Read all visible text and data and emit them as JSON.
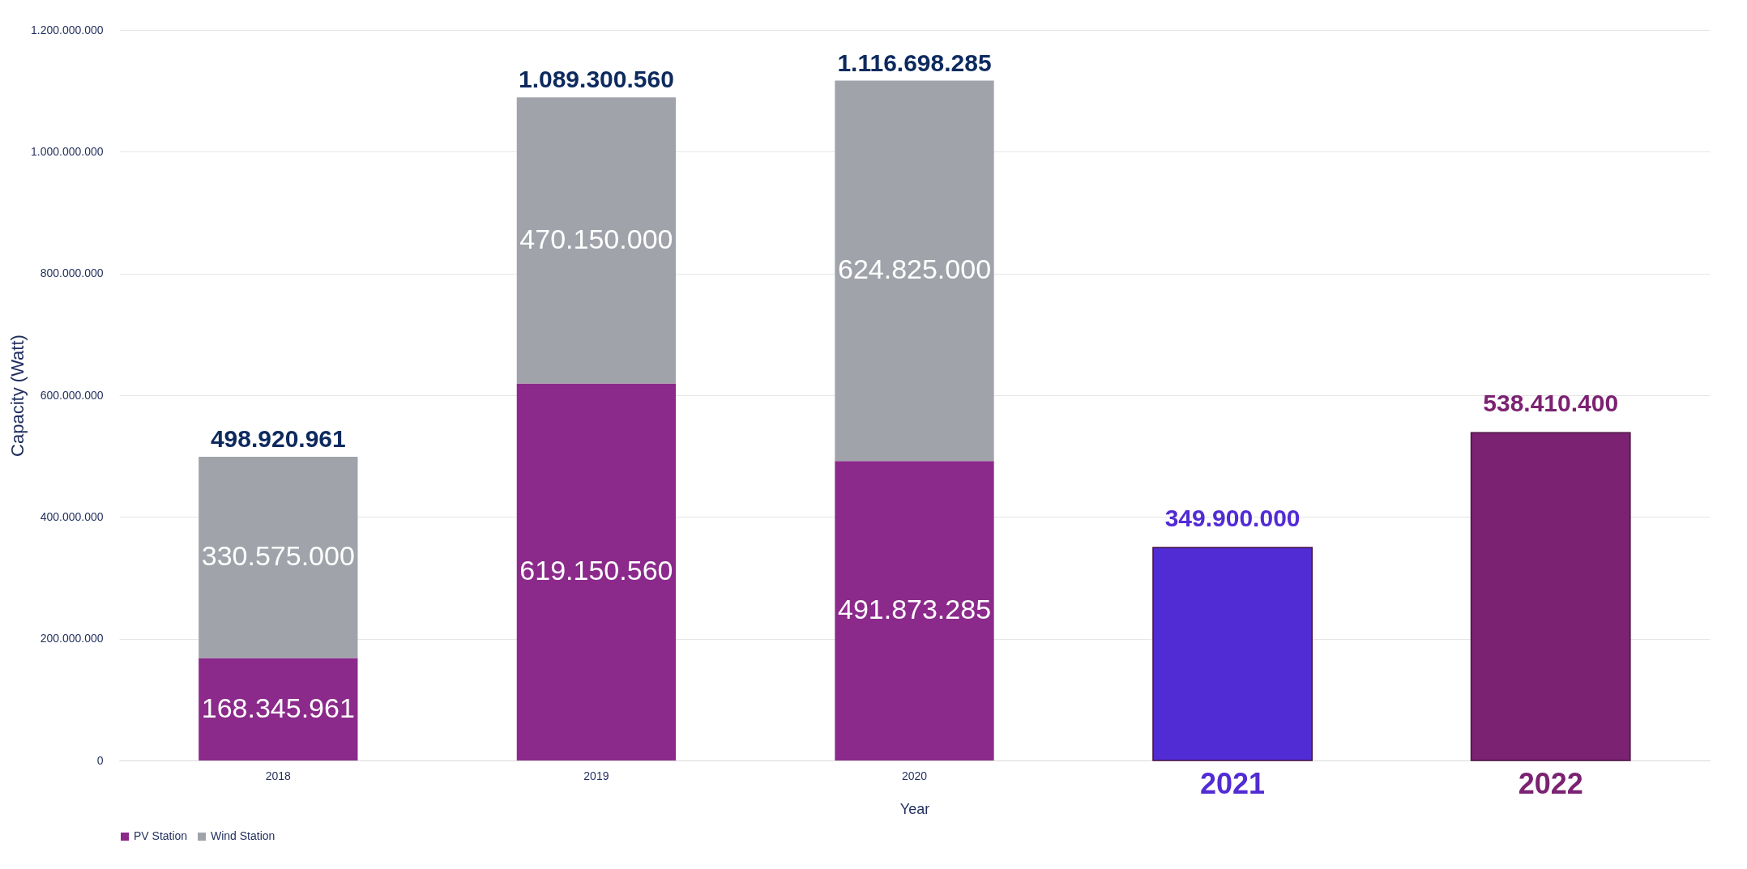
{
  "chart_data": {
    "type": "bar",
    "stacked": true,
    "xlabel": "Year",
    "ylabel": "Capacity (Watt)",
    "categories": [
      "2018",
      "2019",
      "2020",
      "2021",
      "2022"
    ],
    "series": [
      {
        "name": "PV Station",
        "color": "#8b2a8b",
        "values": [
          168345961,
          619150560,
          491873285,
          null,
          null
        ],
        "value_labels": [
          "168.345.961",
          "619.150.560",
          "491.873.285",
          null,
          null
        ]
      },
      {
        "name": "Wind Station",
        "color": "#a0a3aa",
        "values": [
          330575000,
          470150000,
          624825000,
          null,
          null
        ],
        "value_labels": [
          "330.575.000",
          "470.150.000",
          "624.825.000",
          null,
          null
        ]
      },
      {
        "colors": [
          null,
          null,
          null,
          "#512bd4",
          "#7b2272"
        ],
        "values": [
          null,
          null,
          null,
          349900000,
          538410400
        ],
        "value_labels": [
          null,
          null,
          null,
          "349.900.000",
          "538.410.400"
        ]
      }
    ],
    "totals": [
      "498.920.961",
      "1.089.300.560",
      "1.116.698.285",
      null,
      null
    ],
    "ylim": [
      0,
      1200000000
    ],
    "yticks": [
      0,
      {
        "value": 200000000,
        "label": "200.000.000"
      },
      {
        "value": 400000000,
        "label": "400.000.000"
      },
      {
        "value": 600000000,
        "label": "600.000.000"
      },
      {
        "value": 800000000,
        "label": "800.000.000"
      },
      {
        "value": 1000000000,
        "label": "1.000.000.000"
      },
      {
        "value": 1200000000,
        "label": "1.200.000.000"
      }
    ],
    "grid": "y",
    "legend": "bottom"
  }
}
